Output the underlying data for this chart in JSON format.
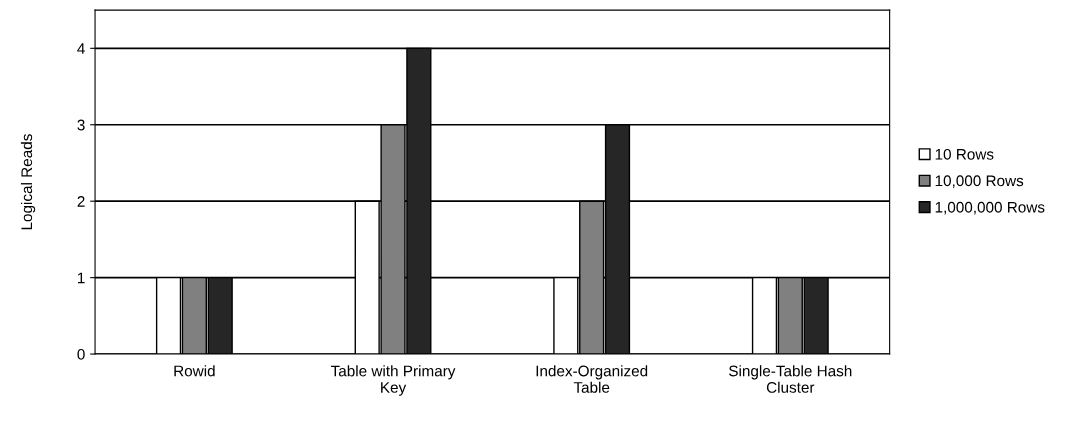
{
  "chart_data": {
    "type": "bar",
    "ylabel": "Logical Reads",
    "categories": [
      "Rowid",
      "Table with Primary\nKey",
      "Index-Organized\nTable",
      "Single-Table Hash\nCluster"
    ],
    "series": [
      {
        "name": "10 Rows",
        "color": "#ffffff",
        "values": [
          1,
          2,
          1,
          1
        ]
      },
      {
        "name": "10,000 Rows",
        "color": "#808080",
        "values": [
          1,
          3,
          2,
          1
        ]
      },
      {
        "name": "1,000,000 Rows",
        "color": "#262626",
        "values": [
          1,
          4,
          3,
          1
        ]
      }
    ],
    "ylim": [
      0,
      4.5
    ],
    "yticks": [
      0,
      1,
      2,
      3,
      4
    ],
    "grid": "y",
    "legend": "right"
  }
}
